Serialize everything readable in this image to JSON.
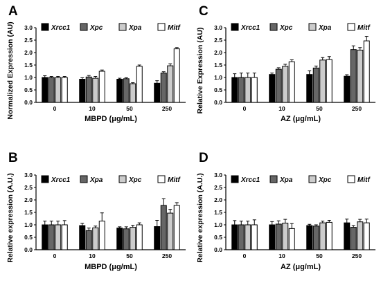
{
  "chart_data": [
    {
      "panel": "A",
      "type": "bar",
      "ylabel": "Normalized Expression (AU)",
      "xlabel": "MBPD (μg/mL)",
      "categories": [
        "0",
        "10",
        "50",
        "250"
      ],
      "ylim": [
        0,
        3
      ],
      "yticks": [
        "0.0",
        "0.5",
        "1.0",
        "1.5",
        "2.0",
        "2.5",
        "3.0"
      ],
      "legend_position": "top",
      "series": [
        {
          "name": "Xrcc1",
          "color": "#000000",
          "values": [
            1.0,
            0.93,
            0.93,
            0.77
          ],
          "errors": [
            0.07,
            0.06,
            0.04,
            0.1
          ]
        },
        {
          "name": "Xpc",
          "color": "#666666",
          "values": [
            1.0,
            1.02,
            0.95,
            1.18
          ],
          "errors": [
            0.04,
            0.06,
            0.04,
            0.05
          ]
        },
        {
          "name": "Xpa",
          "color": "#cccccc",
          "values": [
            1.0,
            0.97,
            0.75,
            1.47
          ],
          "errors": [
            0.04,
            0.07,
            0.04,
            0.08
          ]
        },
        {
          "name": "Mitf",
          "color": "#ffffff",
          "values": [
            1.0,
            1.25,
            1.45,
            2.15
          ],
          "errors": [
            0.04,
            0.05,
            0.05,
            0.05
          ]
        }
      ]
    },
    {
      "panel": "B",
      "type": "bar",
      "ylabel": "Relative expression (A.U.)",
      "xlabel": "MBPD (μg/mL)",
      "categories": [
        "0",
        "10",
        "50",
        "250"
      ],
      "ylim": [
        0,
        3
      ],
      "yticks": [
        "0.0",
        "0.5",
        "1.0",
        "1.5",
        "2.0",
        "2.5",
        "3.0"
      ],
      "legend_position": "top",
      "series": [
        {
          "name": "Xrcc1",
          "color": "#000000",
          "values": [
            1.0,
            0.97,
            0.87,
            0.93
          ],
          "errors": [
            0.15,
            0.09,
            0.05,
            0.25
          ]
        },
        {
          "name": "Xpa",
          "color": "#666666",
          "values": [
            1.0,
            0.77,
            0.84,
            1.78
          ],
          "errors": [
            0.15,
            0.1,
            0.08,
            0.27
          ]
        },
        {
          "name": "Xpc",
          "color": "#cccccc",
          "values": [
            1.0,
            0.88,
            0.9,
            1.47
          ],
          "errors": [
            0.15,
            0.07,
            0.08,
            0.15
          ]
        },
        {
          "name": "Mitf",
          "color": "#ffffff",
          "values": [
            1.0,
            1.15,
            1.0,
            1.78
          ],
          "errors": [
            0.17,
            0.33,
            0.08,
            0.11
          ]
        }
      ]
    },
    {
      "panel": "C",
      "type": "bar",
      "ylabel": "Relative Expression (AU)",
      "xlabel": "AZ (μg/mL)",
      "categories": [
        "0",
        "10",
        "50",
        "250"
      ],
      "ylim": [
        0,
        3
      ],
      "yticks": [
        "0.0",
        "0.5",
        "1.0",
        "1.5",
        "2.0",
        "2.5",
        "3.0"
      ],
      "legend_position": "top",
      "series": [
        {
          "name": "Xrcc1",
          "color": "#000000",
          "values": [
            1.0,
            1.12,
            1.12,
            1.05
          ],
          "errors": [
            0.15,
            0.06,
            0.15,
            0.06
          ]
        },
        {
          "name": "Xpc",
          "color": "#666666",
          "values": [
            1.0,
            1.33,
            1.38,
            2.12
          ],
          "errors": [
            0.18,
            0.06,
            0.08,
            0.15
          ]
        },
        {
          "name": "Xpa",
          "color": "#cccccc",
          "values": [
            1.0,
            1.45,
            1.7,
            2.1
          ],
          "errors": [
            0.18,
            0.08,
            0.1,
            0.1
          ]
        },
        {
          "name": "Mitf",
          "color": "#ffffff",
          "values": [
            1.0,
            1.63,
            1.72,
            2.47
          ],
          "errors": [
            0.18,
            0.08,
            0.12,
            0.18
          ]
        }
      ]
    },
    {
      "panel": "D",
      "type": "bar",
      "ylabel": "Relative expression (A.U.)",
      "xlabel": "AZ (μg/mL)",
      "categories": [
        "0",
        "10",
        "50",
        "250"
      ],
      "ylim": [
        0,
        3
      ],
      "yticks": [
        "0.0",
        "0.5",
        "1.0",
        "1.5",
        "2.0",
        "2.5",
        "3.0"
      ],
      "legend_position": "top",
      "series": [
        {
          "name": "Xrcc1",
          "color": "#000000",
          "values": [
            1.0,
            1.0,
            0.97,
            1.08
          ],
          "errors": [
            0.17,
            0.13,
            0.05,
            0.15
          ]
        },
        {
          "name": "Xpa",
          "color": "#666666",
          "values": [
            1.0,
            1.03,
            0.95,
            0.9
          ],
          "errors": [
            0.15,
            0.13,
            0.05,
            0.07
          ]
        },
        {
          "name": "Xpc",
          "color": "#cccccc",
          "values": [
            1.0,
            1.07,
            1.08,
            1.12
          ],
          "errors": [
            0.15,
            0.15,
            0.07,
            0.1
          ]
        },
        {
          "name": "Mitf",
          "color": "#ffffff",
          "values": [
            1.0,
            0.85,
            1.1,
            1.08
          ],
          "errors": [
            0.2,
            0.2,
            0.08,
            0.15
          ]
        }
      ]
    }
  ]
}
